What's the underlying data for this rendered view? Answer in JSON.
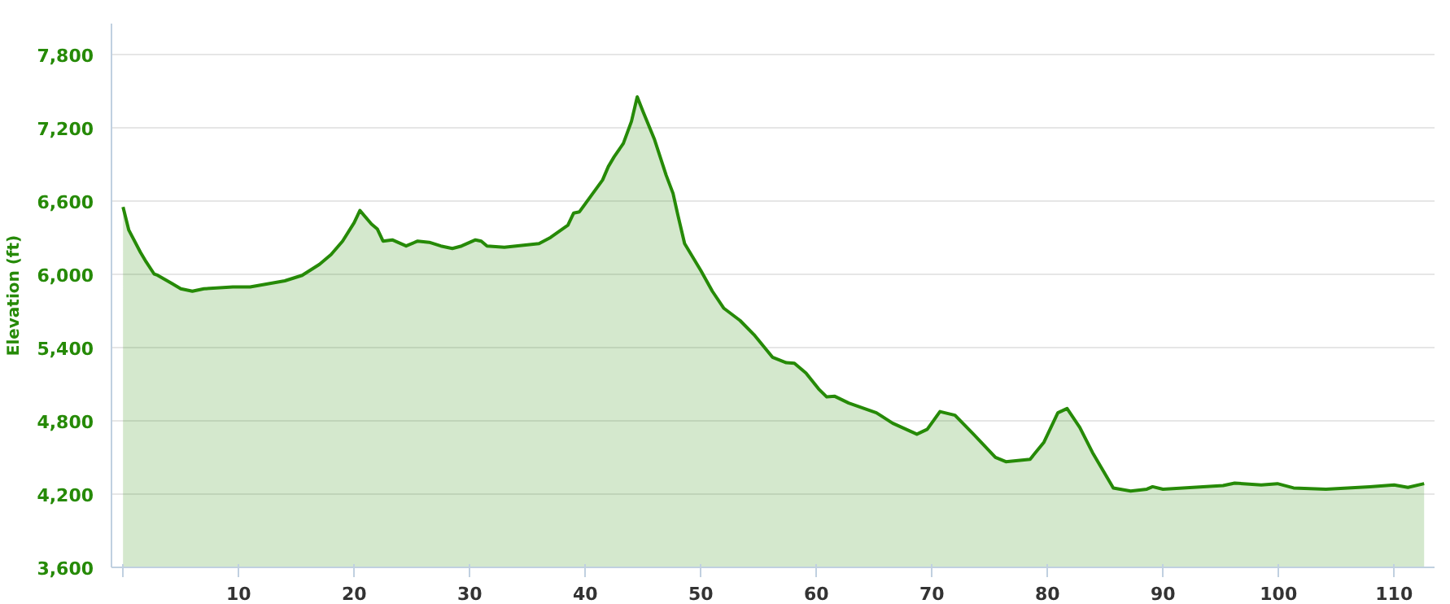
{
  "chart_data": {
    "type": "area",
    "ylabel": "Elevation (ft)",
    "x": [
      0,
      0.5,
      1.5,
      2,
      2.7,
      3,
      4.2,
      5,
      6,
      7,
      9.5,
      11,
      14,
      15.5,
      17,
      18,
      19,
      20,
      20.5,
      21.5,
      22,
      22.5,
      23.3,
      24.5,
      25.5,
      26.5,
      27.5,
      28.5,
      29.3,
      30.5,
      31,
      31.5,
      33,
      35,
      36,
      37,
      38.5,
      39,
      39.5,
      40.5,
      41.5,
      42,
      42.5,
      43.3,
      44,
      44.5,
      45,
      46,
      47,
      47.6,
      48,
      48.6,
      50,
      51,
      52,
      53.4,
      54.6,
      56.2,
      57.4,
      58.1,
      59.1,
      60.2,
      60.9,
      61.6,
      62.8,
      65.2,
      66.6,
      68.7,
      69.6,
      70.7,
      72,
      73.6,
      75.5,
      76.4,
      78.5,
      79.7,
      80.9,
      81.7,
      82.8,
      83.9,
      85.7,
      87.2,
      88.6,
      89.1,
      90,
      95.2,
      96.2,
      98.5,
      99.9,
      101.3,
      104.1,
      107.9,
      110,
      111.2,
      112.6
    ],
    "series": [
      {
        "color": "#268a07",
        "values": [
          6550,
          6360,
          6180,
          6100,
          6000,
          5990,
          5925,
          5880,
          5860,
          5880,
          5895,
          5895,
          5945,
          5990,
          6080,
          6160,
          6270,
          6420,
          6520,
          6410,
          6370,
          6270,
          6280,
          6230,
          6270,
          6260,
          6230,
          6210,
          6230,
          6280,
          6270,
          6230,
          6220,
          6240,
          6250,
          6300,
          6400,
          6500,
          6510,
          6640,
          6770,
          6880,
          6960,
          7070,
          7250,
          7450,
          7330,
          7100,
          6810,
          6660,
          6490,
          6250,
          6030,
          5860,
          5720,
          5620,
          5505,
          5320,
          5275,
          5270,
          5190,
          5060,
          4995,
          5000,
          4945,
          4865,
          4780,
          4690,
          4730,
          4875,
          4845,
          4690,
          4500,
          4465,
          4485,
          4625,
          4865,
          4900,
          4745,
          4540,
          4250,
          4225,
          4240,
          4260,
          4240,
          4270,
          4290,
          4275,
          4285,
          4250,
          4240,
          4260,
          4275,
          4255,
          4285
        ]
      }
    ],
    "xlim": [
      -1,
      113.5
    ],
    "ylim": [
      3600,
      8050
    ],
    "xticks": [
      {
        "value": 0,
        "label": null
      },
      10,
      20,
      30,
      40,
      50,
      60,
      70,
      80,
      90,
      100,
      110
    ],
    "yticks": [
      {
        "value": 3600,
        "label": "3,600"
      },
      {
        "value": 4200,
        "label": "4,200"
      },
      {
        "value": 4800,
        "label": "4,800"
      },
      {
        "value": 5400,
        "label": "5,400"
      },
      {
        "value": 6000,
        "label": "6,000"
      },
      {
        "value": 6600,
        "label": "6,600"
      },
      {
        "value": 7200,
        "label": "7,200"
      },
      {
        "value": 7800,
        "label": "7,800"
      }
    ],
    "grid": "y",
    "marker": "none",
    "line_style": "solid"
  }
}
